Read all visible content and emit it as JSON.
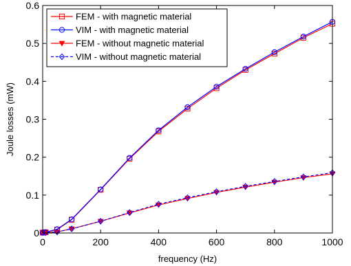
{
  "chart_data": {
    "type": "line",
    "xlabel": "frequency (Hz)",
    "ylabel": "Joule losses (mW)",
    "xlim": [
      0,
      1000
    ],
    "ylim": [
      0,
      0.6
    ],
    "xticks": [
      0,
      200,
      400,
      600,
      800,
      1000
    ],
    "yticks": [
      0,
      0.1,
      0.2,
      0.3,
      0.4,
      0.5,
      0.6
    ],
    "xtick_labels": [
      "0",
      "200",
      "400",
      "600",
      "800",
      "1000"
    ],
    "ytick_labels": [
      "0",
      "0.1",
      "0.2",
      "0.3",
      "0.4",
      "0.5",
      "0.6"
    ],
    "grid": false,
    "legend_position": "top-left",
    "x": [
      0,
      10,
      50,
      100,
      200,
      300,
      400,
      500,
      600,
      700,
      800,
      900,
      1000
    ],
    "series": [
      {
        "name": "FEM - with magnetic material",
        "color": "#ff0000",
        "marker": "square",
        "dash": "solid",
        "values": [
          0.001,
          0.002,
          0.009,
          0.035,
          0.114,
          0.196,
          0.268,
          0.328,
          0.382,
          0.43,
          0.473,
          0.515,
          0.552
        ]
      },
      {
        "name": "VIM - with magnetic material",
        "color": "#0000ff",
        "marker": "circle",
        "dash": "solid",
        "values": [
          0.001,
          0.002,
          0.01,
          0.036,
          0.115,
          0.198,
          0.271,
          0.332,
          0.386,
          0.433,
          0.477,
          0.518,
          0.557
        ]
      },
      {
        "name": "FEM - without magnetic material",
        "color": "#ff0000",
        "marker": "triangle-down",
        "dash": "solid",
        "values": [
          0.001,
          0.001,
          0.003,
          0.011,
          0.031,
          0.053,
          0.074,
          0.091,
          0.107,
          0.121,
          0.134,
          0.146,
          0.156
        ]
      },
      {
        "name": "VIM - without magnetic material",
        "color": "#0000ff",
        "marker": "diamond",
        "dash": "dashed",
        "values": [
          0.001,
          0.001,
          0.003,
          0.011,
          0.031,
          0.054,
          0.076,
          0.093,
          0.109,
          0.123,
          0.136,
          0.148,
          0.159
        ]
      }
    ]
  }
}
